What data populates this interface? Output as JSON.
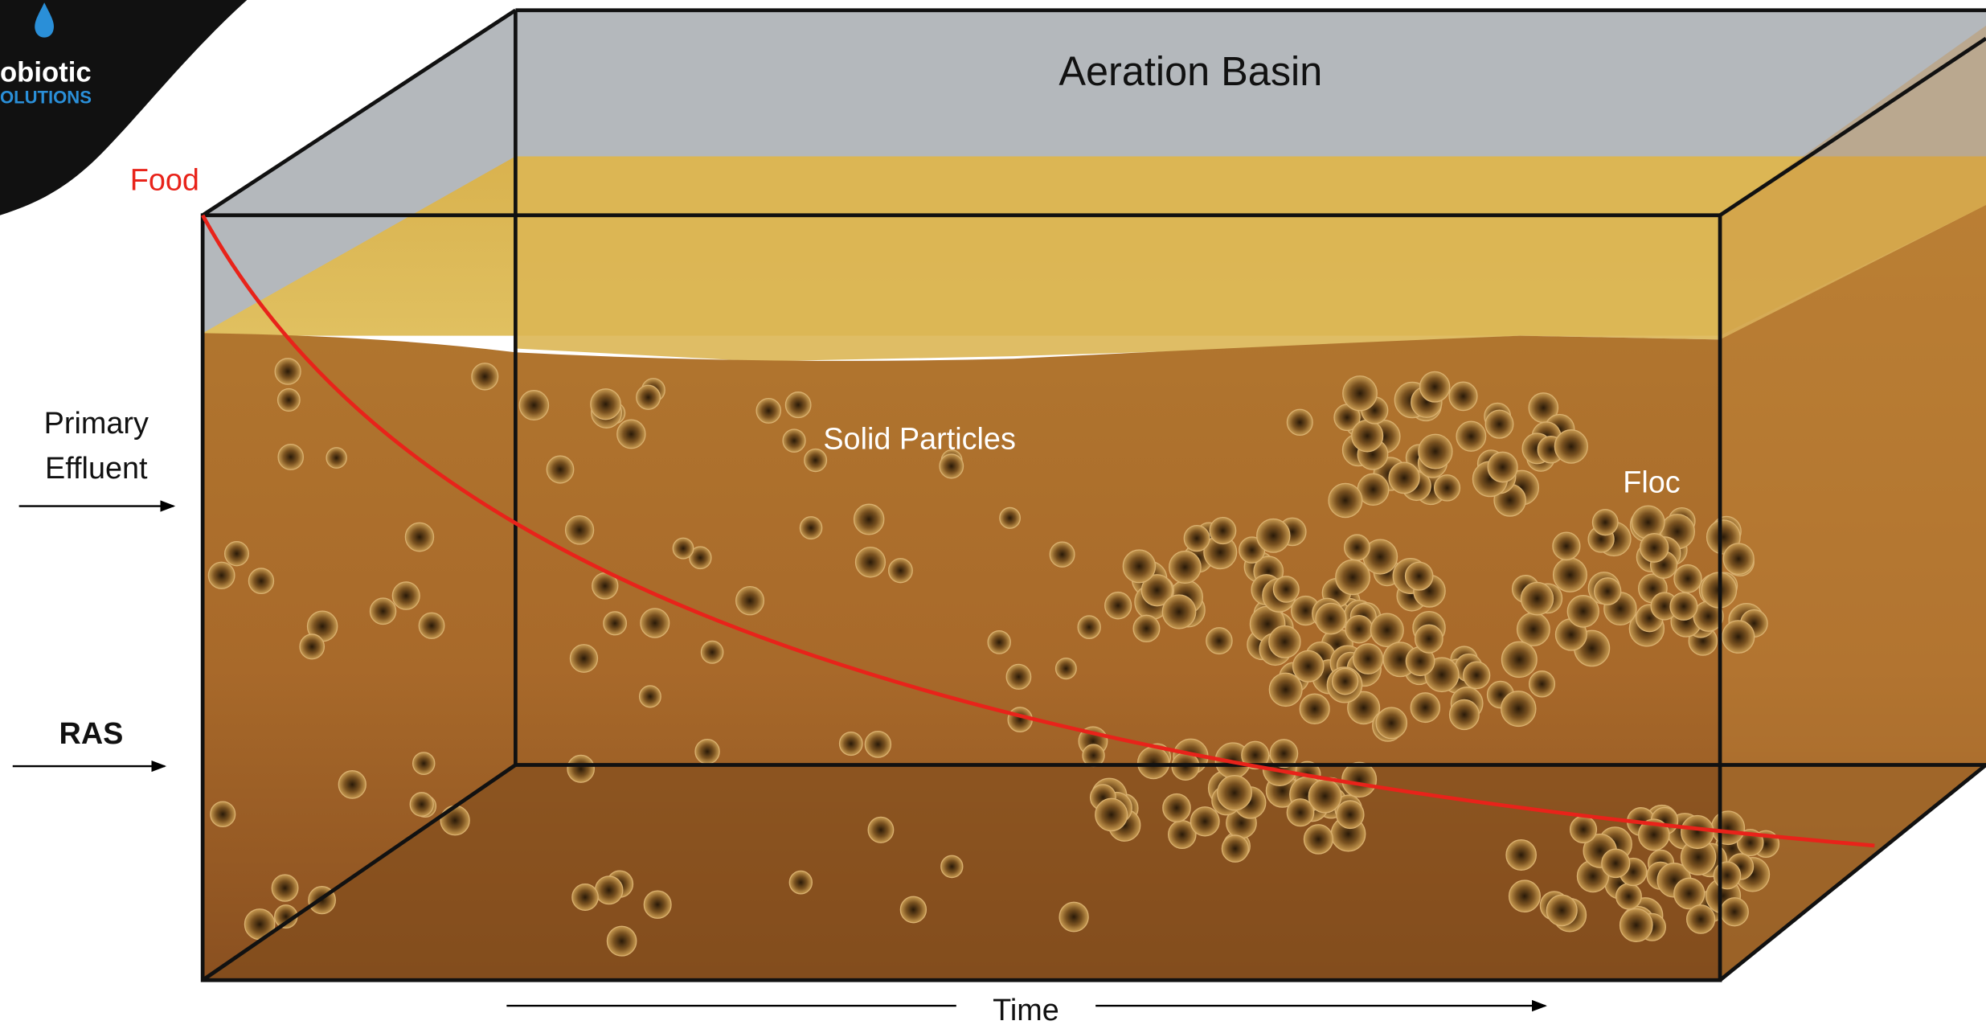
{
  "logo": {
    "line1": "obiotic",
    "line2": "OLUTIONS"
  },
  "title": "Aeration Basin",
  "labels": {
    "food": "Food",
    "primary_effluent": [
      "Primary",
      "Effluent"
    ],
    "ras": "RAS",
    "solid_particles": "Solid Particles",
    "floc": "Floc",
    "time": "Time"
  }
}
